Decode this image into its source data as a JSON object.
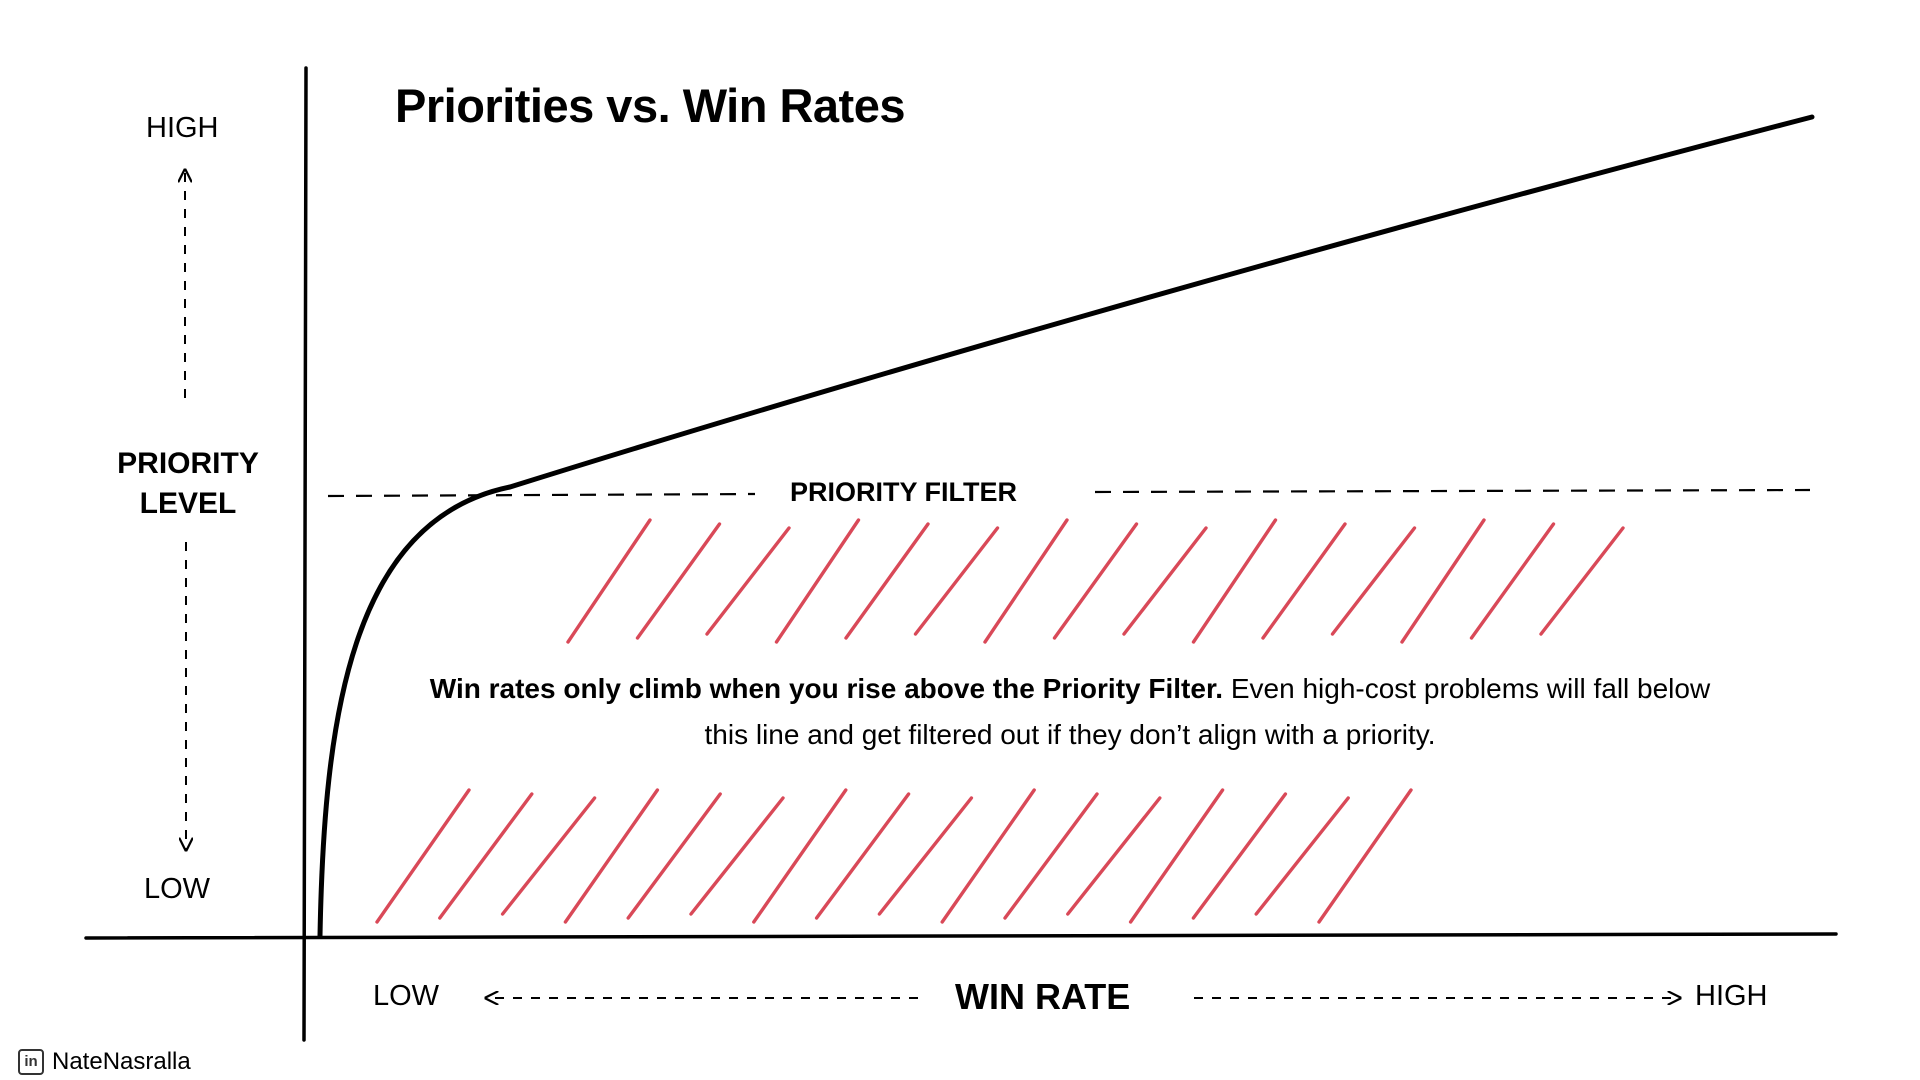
{
  "title": "Priorities vs. Win Rates",
  "y_axis": {
    "label_line1": "PRIORITY",
    "label_line2": "LEVEL",
    "high": "HIGH",
    "low": "LOW"
  },
  "x_axis": {
    "label": "WIN RATE",
    "low": "LOW",
    "high": "HIGH"
  },
  "priority_filter": {
    "label": "PRIORITY FILTER"
  },
  "callout": {
    "bold": "Win rates only climb when you rise above the Priority Filter.",
    "regular": " Even high-cost problems will fall below this line and get filtered out if they don’t align with a priority."
  },
  "footer": {
    "icon": "linkedin-icon",
    "icon_text": "in",
    "author": "NateNasralla"
  },
  "colors": {
    "hatch": "#d63a4a",
    "ink": "#000000"
  }
}
